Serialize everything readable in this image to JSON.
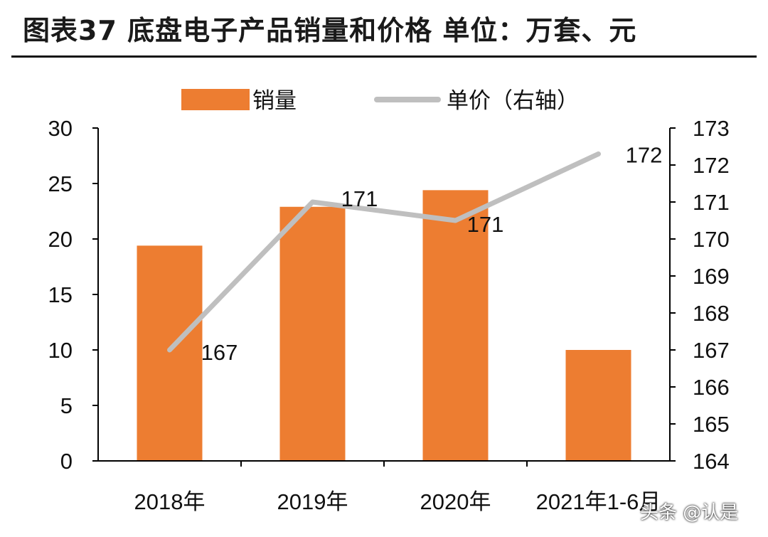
{
  "figure": {
    "title": "图表37    底盘电子产品销量和价格   单位：万套、元"
  },
  "watermark": {
    "text": "头条 @认是"
  },
  "chart_data": {
    "type": "bar",
    "categories": [
      "2018年",
      "2019年",
      "2020年",
      "2021年1-6月"
    ],
    "series": [
      {
        "name": "销量",
        "type": "bar",
        "axis": "left",
        "color": "#ED7D31",
        "values": [
          19.4,
          22.9,
          24.4,
          10.0
        ]
      },
      {
        "name": "单价（右轴）",
        "type": "line",
        "axis": "right",
        "color": "#BFBFBF",
        "values": [
          167,
          171,
          170.5,
          172.3
        ],
        "data_labels": [
          "167",
          "171",
          "171",
          "172"
        ]
      }
    ],
    "y_left": {
      "min": 0,
      "max": 30,
      "ticks": [
        "0",
        "5",
        "10",
        "15",
        "20",
        "25",
        "30"
      ]
    },
    "y_right": {
      "min": 164,
      "max": 173,
      "ticks": [
        "164",
        "165",
        "166",
        "167",
        "168",
        "169",
        "170",
        "171",
        "172",
        "173"
      ]
    },
    "legend": "top-center",
    "grid": false
  }
}
